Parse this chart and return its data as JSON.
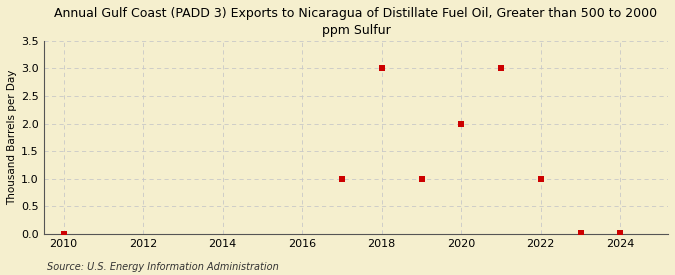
{
  "title": "Annual Gulf Coast (PADD 3) Exports to Nicaragua of Distillate Fuel Oil, Greater than 500 to 2000\nppm Sulfur",
  "ylabel": "Thousand Barrels per Day",
  "source": "Source: U.S. Energy Information Administration",
  "x_data": [
    2010,
    2017,
    2018,
    2019,
    2020,
    2021,
    2022,
    2023,
    2024
  ],
  "y_data": [
    0.0,
    1.0,
    3.0,
    1.0,
    2.0,
    3.0,
    1.0,
    0.02,
    0.02
  ],
  "xlim": [
    2009.5,
    2025.2
  ],
  "ylim": [
    0.0,
    3.5
  ],
  "yticks": [
    0.0,
    0.5,
    1.0,
    1.5,
    2.0,
    2.5,
    3.0,
    3.5
  ],
  "xticks": [
    2010,
    2012,
    2014,
    2016,
    2018,
    2020,
    2022,
    2024
  ],
  "marker_color": "#cc0000",
  "marker_size": 4,
  "bg_color": "#f5efce",
  "plot_bg_color": "#f5efce",
  "grid_color": "#c8c8c8",
  "title_fontsize": 9.0,
  "label_fontsize": 7.5,
  "tick_fontsize": 8,
  "source_fontsize": 7
}
